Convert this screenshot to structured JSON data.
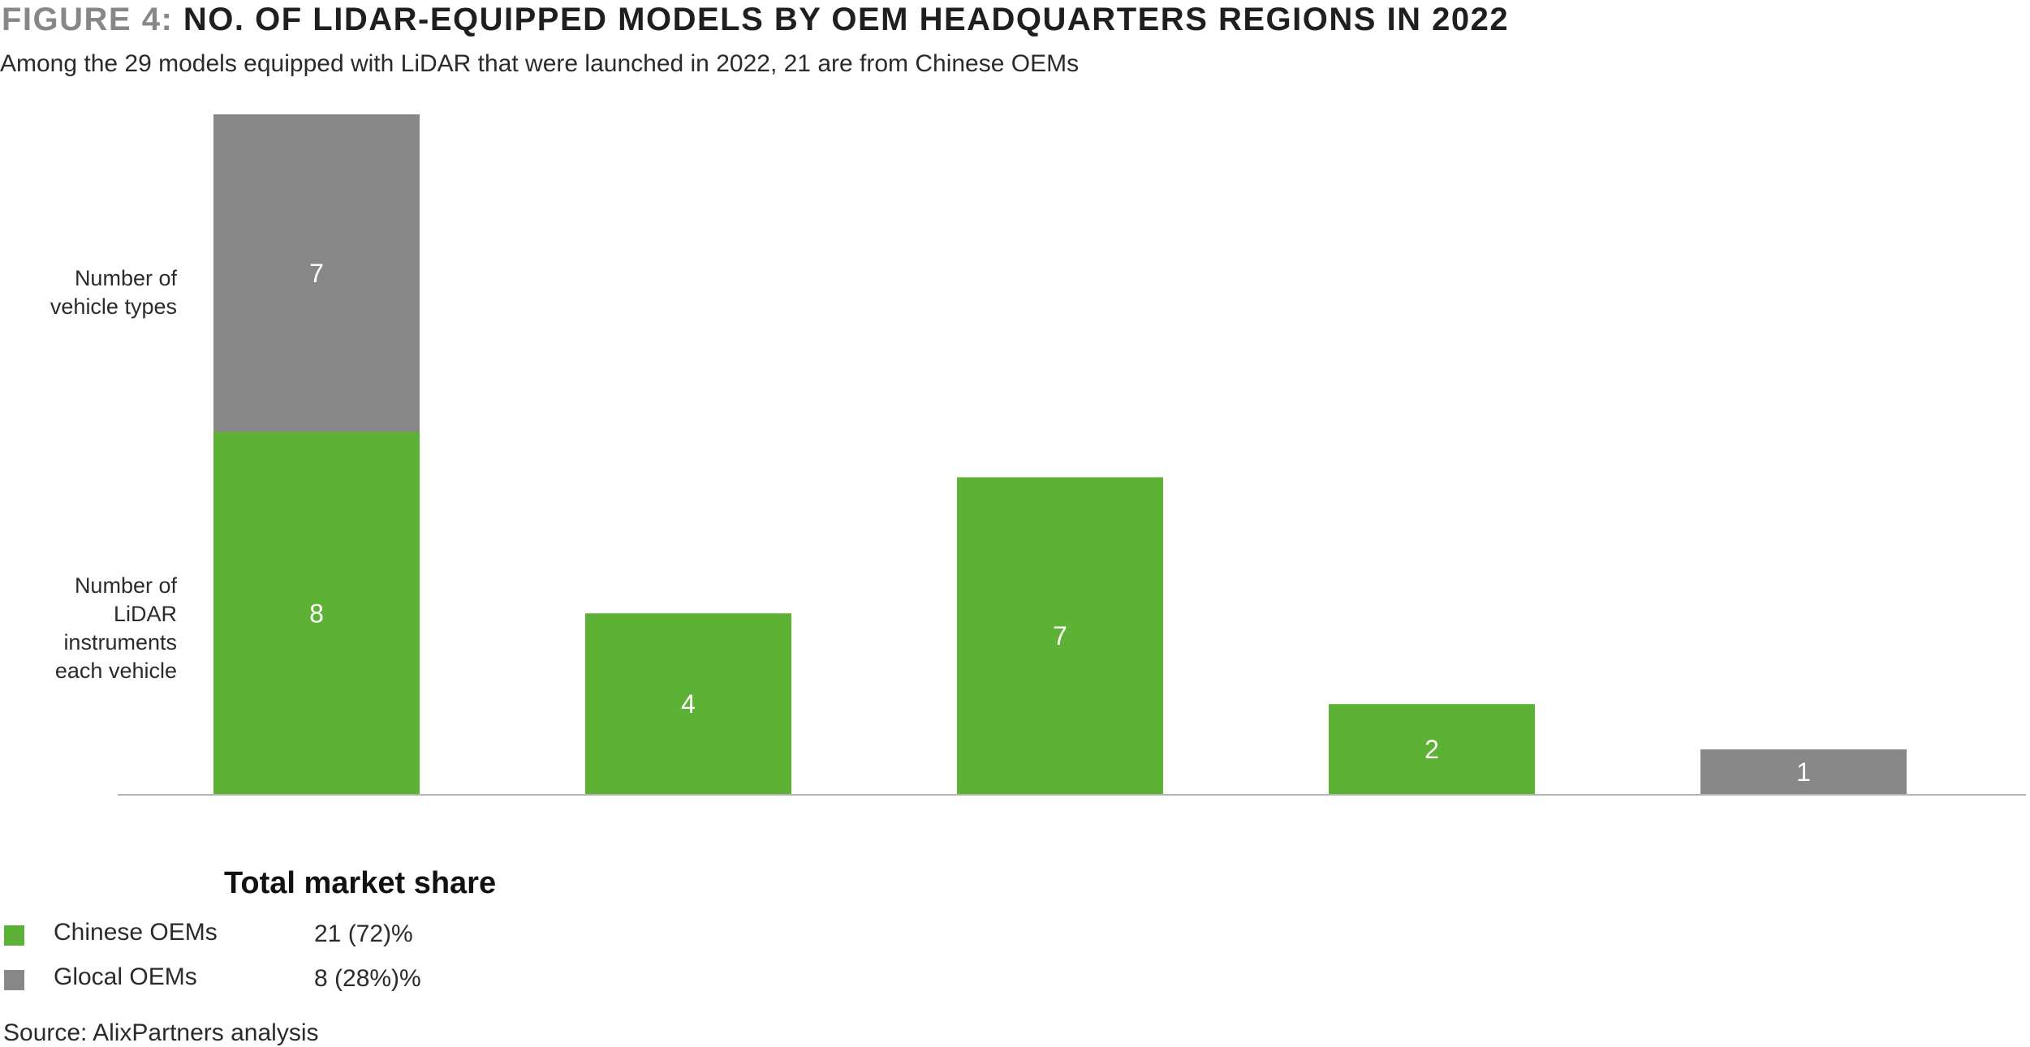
{
  "header": {
    "title_prefix": "FIGURE 4:",
    "title_main": "NO. OF LIDAR-EQUIPPED MODELS BY OEM HEADQUARTERS REGIONS IN 2022",
    "subtitle": "Among the 29 models equipped with LiDAR that were launched in 2022, 21 are from Chinese OEMs"
  },
  "side_labels": {
    "vehicle_types": "Number of vehicle types",
    "lidar_instruments": "Number of LiDAR instruments each vehicle"
  },
  "legend": {
    "title": "Total market share",
    "items": [
      {
        "name": "Chinese OEMs",
        "value": "21 (72)%",
        "color": "#5db236"
      },
      {
        "name": "Glocal OEMs",
        "value": "8 (28%)%",
        "color": "#878787"
      }
    ]
  },
  "source": "Source:  AlixPartners analysis",
  "colors": {
    "chinese": "#5db236",
    "glocal": "#878787",
    "axis": "#b4b4b4",
    "bar_label": "#ffffff"
  },
  "chart_data": {
    "type": "bar",
    "stacked": true,
    "categories": [
      "",
      "",
      "",
      "",
      ""
    ],
    "series": [
      {
        "name": "Chinese OEMs",
        "values": [
          8,
          4,
          7,
          2,
          0
        ]
      },
      {
        "name": "Glocal OEMs",
        "values": [
          7,
          0,
          0,
          0,
          1
        ]
      }
    ],
    "title": "",
    "xlabel": "",
    "ylabel": "",
    "ylim": [
      0,
      15
    ],
    "grid": false,
    "legend_position": "bottom-left"
  }
}
